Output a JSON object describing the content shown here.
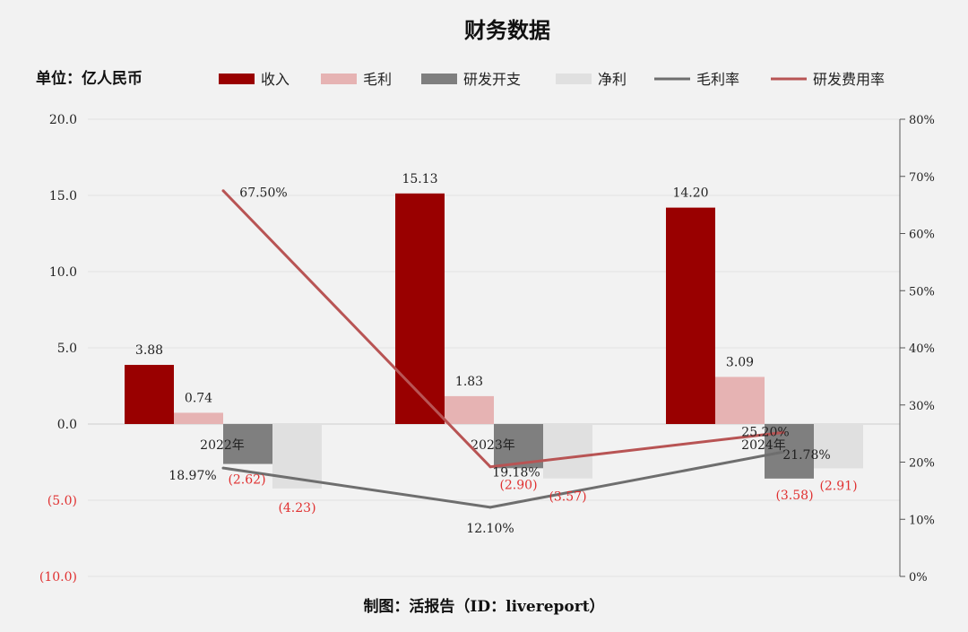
{
  "chart_data": {
    "type": "bar",
    "title": "财务数据",
    "unit_label": "单位：亿人民币",
    "source": "制图：活报告（ID：livereport）",
    "categories": [
      "2022年",
      "2023年",
      "2024年"
    ],
    "left_axis": {
      "ylim": [
        -10,
        20
      ],
      "ticks": [
        20,
        15,
        10,
        5,
        0,
        -5,
        -10
      ],
      "tick_labels": [
        "20.0",
        "15.0",
        "10.0",
        "5.0",
        "0.0",
        "(5.0)",
        "(10.0)"
      ]
    },
    "right_axis": {
      "ylim": [
        0,
        80
      ],
      "ticks": [
        80,
        70,
        60,
        50,
        40,
        30,
        20,
        10,
        0
      ],
      "tick_labels": [
        "80%",
        "70%",
        "60%",
        "50%",
        "40%",
        "30%",
        "20%",
        "10%",
        "0%"
      ]
    },
    "series": [
      {
        "name": "收入",
        "kind": "bar",
        "color": "#990000",
        "values": [
          3.88,
          15.13,
          14.2
        ],
        "labels": [
          "3.88",
          "15.13",
          "14.20"
        ]
      },
      {
        "name": "毛利",
        "kind": "bar",
        "color": "#e6b3b3",
        "values": [
          0.74,
          1.83,
          3.09
        ],
        "labels": [
          "0.74",
          "1.83",
          "3.09"
        ]
      },
      {
        "name": "研发开支",
        "kind": "bar",
        "color": "#7f7f7f",
        "values": [
          -2.62,
          -2.9,
          -3.58
        ],
        "labels": [
          "(2.62)",
          "(2.90)",
          "(3.58)"
        ]
      },
      {
        "name": "净利",
        "kind": "bar",
        "color": "#e0e0e0",
        "values": [
          -4.23,
          -3.57,
          -2.91
        ],
        "labels": [
          "(4.23)",
          "(3.57)",
          "(2.91)"
        ]
      },
      {
        "name": "毛利率",
        "kind": "line",
        "axis": "right",
        "color": "#6e6e6e",
        "values": [
          18.97,
          12.1,
          21.78
        ],
        "labels": [
          "18.97%",
          "12.10%",
          "21.78%"
        ]
      },
      {
        "name": "研发费用率",
        "kind": "line",
        "axis": "right",
        "color": "#b85454",
        "values": [
          67.5,
          19.18,
          25.2
        ],
        "labels": [
          "67.50%",
          "19.18%",
          "25.20%"
        ]
      }
    ],
    "grid": "horizontal",
    "legend_position": "top"
  }
}
